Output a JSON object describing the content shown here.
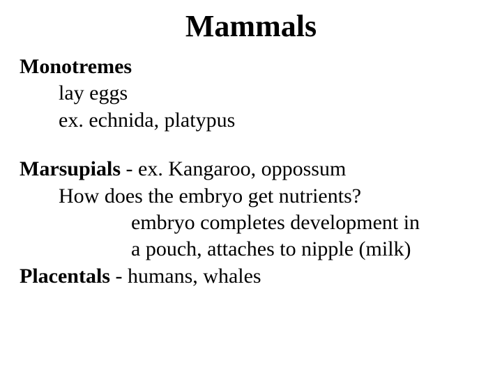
{
  "title": "Mammals",
  "title_fontsize": 44,
  "body_fontsize": 30,
  "background_color": "#ffffff",
  "text_color": "#000000",
  "font_family": "Times New Roman",
  "sections": {
    "monotremes": {
      "heading": "Monotremes",
      "line1": "lay eggs",
      "line2": "ex.  echnida, platypus"
    },
    "marsupials": {
      "heading": "Marsupials",
      "heading_rest": " - ex.  Kangaroo, oppossum",
      "q": "How does the embryo get nutrients?",
      "ans1": "embryo completes development in",
      "ans2": "a pouch, attaches to nipple (milk)"
    },
    "placentals": {
      "heading": "Placentals ",
      "rest": " - humans, whales"
    }
  }
}
